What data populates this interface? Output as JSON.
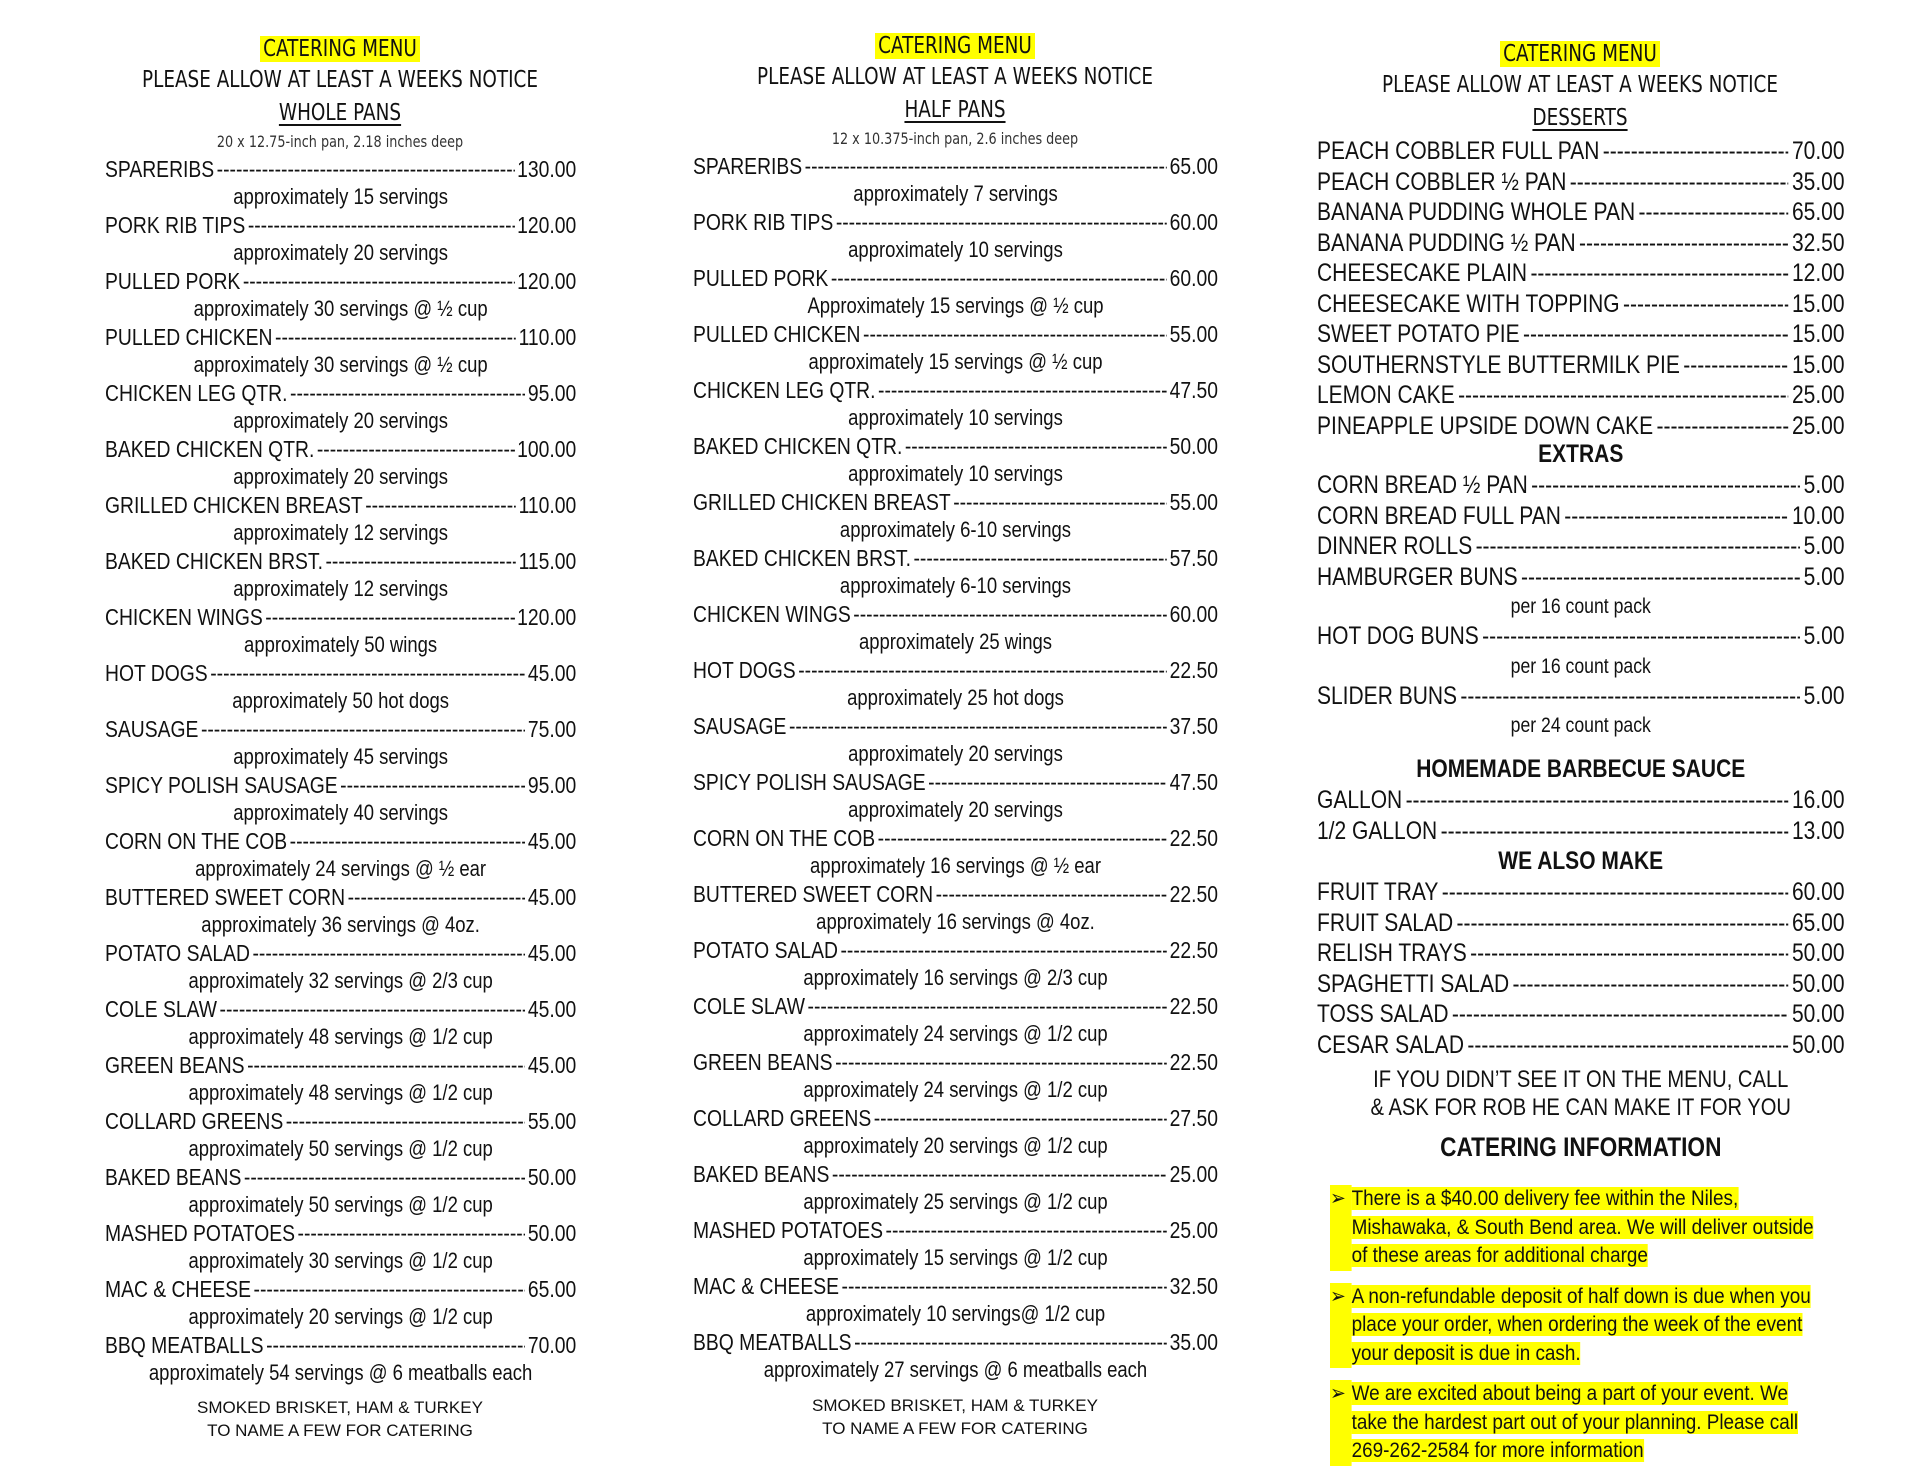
{
  "left": {
    "title": "CATERING MENU",
    "notice": "PLEASE ALLOW AT LEAST A WEEKS NOTICE",
    "section": "WHOLE PANS",
    "spec": "20 x 12.75-inch pan, 2.18 inches deep",
    "items": [
      {
        "name": "SPARERIBS",
        "price": "130.00",
        "note": "approximately 15 servings"
      },
      {
        "name": "PORK RIB TIPS",
        "price": "120.00",
        "note": "approximately 20 servings"
      },
      {
        "name": "PULLED PORK",
        "price": "120.00",
        "note": "approximately 30 servings @ ½ cup"
      },
      {
        "name": "PULLED CHICKEN",
        "price": "110.00",
        "note": "approximately 30 servings @ ½ cup"
      },
      {
        "name": "CHICKEN LEG QTR.",
        "price": "95.00",
        "note": "approximately 20 servings"
      },
      {
        "name": "BAKED CHICKEN QTR.",
        "price": "100.00",
        "note": "approximately 20 servings"
      },
      {
        "name": "GRILLED CHICKEN BREAST",
        "price": "110.00",
        "note": "approximately 12 servings"
      },
      {
        "name": "BAKED CHICKEN BRST.",
        "price": "115.00",
        "note": "approximately 12 servings"
      },
      {
        "name": "CHICKEN WINGS",
        "price": "120.00",
        "note": "approximately 50 wings"
      },
      {
        "name": "HOT DOGS",
        "price": "45.00",
        "note": "approximately 50 hot dogs"
      },
      {
        "name": "SAUSAGE",
        "price": "75.00",
        "note": "approximately 45 servings"
      },
      {
        "name": "SPICY POLISH SAUSAGE",
        "price": "95.00",
        "note": "approximately 40 servings"
      },
      {
        "name": "CORN ON THE COB",
        "price": "45.00",
        "note": "approximately 24 servings @ ½ ear"
      },
      {
        "name": "BUTTERED SWEET CORN",
        "price": "45.00",
        "note": "approximately 36 servings @ 4oz."
      },
      {
        "name": "POTATO SALAD",
        "price": "45.00",
        "note": "approximately 32 servings @ 2/3 cup"
      },
      {
        "name": "COLE SLAW",
        "price": "45.00",
        "note": "approximately 48 servings @ 1/2 cup"
      },
      {
        "name": "GREEN BEANS",
        "price": "45.00",
        "note": "approximately 48 servings @ 1/2 cup"
      },
      {
        "name": "COLLARD GREENS",
        "price": "55.00",
        "note": "approximately 50 servings @ 1/2 cup"
      },
      {
        "name": "BAKED BEANS",
        "price": "50.00",
        "note": "approximately 50 servings @ 1/2 cup"
      },
      {
        "name": "MASHED POTATOES",
        "price": "50.00",
        "note": "approximately 30 servings @ 1/2 cup"
      },
      {
        "name": "MAC & CHEESE",
        "price": "65.00",
        "note": "approximately 20 servings @ 1/2 cup"
      },
      {
        "name": "BBQ MEATBALLS",
        "price": "70.00",
        "note": "approximately 54 servings @ 6 meatballs each"
      }
    ],
    "footer": [
      "SMOKED BRISKET, HAM & TURKEY",
      "TO NAME A FEW FOR CATERING"
    ]
  },
  "middle": {
    "title": "CATERING MENU",
    "notice": "PLEASE ALLOW AT LEAST A WEEKS NOTICE",
    "section": "HALF PANS",
    "spec": "12 x 10.375-inch pan, 2.6 inches deep",
    "items": [
      {
        "name": "SPARERIBS",
        "price": "65.00",
        "note": "approximately 7 servings"
      },
      {
        "name": "PORK RIB TIPS",
        "price": "60.00",
        "note": "approximately 10 servings"
      },
      {
        "name": "PULLED PORK",
        "price": "60.00",
        "note": "Approximately 15 servings @ ½ cup"
      },
      {
        "name": "PULLED CHICKEN",
        "price": "55.00",
        "note": "approximately 15 servings @ ½ cup"
      },
      {
        "name": "CHICKEN LEG QTR.",
        "price": "47.50",
        "note": "approximately 10 servings"
      },
      {
        "name": "BAKED CHICKEN QTR.",
        "price": "50.00",
        "note": "approximately 10 servings"
      },
      {
        "name": "GRILLED CHICKEN BREAST",
        "price": "55.00",
        "note": "approximately 6-10 servings"
      },
      {
        "name": "BAKED CHICKEN BRST.",
        "price": "57.50",
        "note": "approximately 6-10 servings"
      },
      {
        "name": "CHICKEN WINGS",
        "price": "60.00",
        "note": "approximately 25 wings"
      },
      {
        "name": "HOT DOGS",
        "price": "22.50",
        "note": "approximately 25 hot dogs"
      },
      {
        "name": "SAUSAGE",
        "price": "37.50",
        "note": "approximately 20 servings"
      },
      {
        "name": "SPICY POLISH SAUSAGE",
        "price": "47.50",
        "note": "approximately 20 servings"
      },
      {
        "name": "CORN ON THE COB",
        "price": "22.50",
        "note": "approximately 16 servings @ ½ ear"
      },
      {
        "name": "BUTTERED SWEET CORN",
        "price": "22.50",
        "note": "approximately 16 servings @ 4oz."
      },
      {
        "name": "POTATO SALAD",
        "price": "22.50",
        "note": "approximately 16 servings @ 2/3 cup"
      },
      {
        "name": "COLE SLAW",
        "price": "22.50",
        "note": "approximately 24 servings @ 1/2 cup"
      },
      {
        "name": "GREEN BEANS",
        "price": "22.50",
        "note": "approximately 24 servings @ 1/2 cup"
      },
      {
        "name": "COLLARD GREENS",
        "price": "27.50",
        "note": "approximately 20 servings @ 1/2 cup"
      },
      {
        "name": "BAKED BEANS",
        "price": "25.00",
        "note": "approximately 25 servings @ 1/2 cup"
      },
      {
        "name": "MASHED POTATOES",
        "price": "25.00",
        "note": "approximately 15 servings @ 1/2 cup"
      },
      {
        "name": "MAC & CHEESE",
        "price": "32.50",
        "note": "approximately 10 servings@ 1/2 cup"
      },
      {
        "name": "BBQ MEATBALLS",
        "price": "35.00",
        "note": "approximately 27 servings @ 6 meatballs each"
      }
    ],
    "footer": [
      "SMOKED BRISKET, HAM & TURKEY",
      "TO NAME A FEW FOR CATERING"
    ]
  },
  "right": {
    "title": "CATERING MENU",
    "notice": "PLEASE ALLOW AT LEAST A WEEKS NOTICE",
    "section": "DESSERTS",
    "desserts": [
      {
        "name": "PEACH COBBLER FULL PAN",
        "price": "70.00"
      },
      {
        "name": "PEACH COBBLER ½ PAN",
        "price": "35.00"
      },
      {
        "name": "BANANA PUDDING WHOLE PAN",
        "price": "65.00"
      },
      {
        "name": "BANANA PUDDING ½ PAN",
        "price": "32.50"
      },
      {
        "name": "CHEESECAKE PLAIN",
        "price": "12.00"
      },
      {
        "name": "CHEESECAKE WITH TOPPING",
        "price": "15.00"
      },
      {
        "name": "SWEET POTATO PIE",
        "price": "15.00"
      },
      {
        "name": "SOUTHERNSTYLE BUTTERMILK PIE",
        "price": "15.00"
      },
      {
        "name": "LEMON CAKE",
        "price": "25.00"
      },
      {
        "name": "PINEAPPLE UPSIDE DOWN CAKE",
        "price": "25.00"
      }
    ],
    "extras_heading": "EXTRAS",
    "extras": [
      {
        "name": "CORN BREAD ½ PAN",
        "price": "5.00"
      },
      {
        "name": "CORN BREAD FULL PAN",
        "price": "10.00"
      },
      {
        "name": "DINNER ROLLS",
        "price": "5.00"
      },
      {
        "name": "HAMBURGER BUNS",
        "price": "5.00",
        "note": "per 16 count pack"
      },
      {
        "name": "HOT DOG BUNS",
        "price": "5.00",
        "note": "per 16 count pack"
      },
      {
        "name": "SLIDER BUNS",
        "price": "5.00",
        "note": "per 24 count pack"
      }
    ],
    "sauce_heading": "HOMEMADE BARBECUE SAUCE",
    "sauce": [
      {
        "name": "GALLON",
        "price": "16.00"
      },
      {
        "name": "1/2 GALLON",
        "price": "13.00"
      }
    ],
    "also_heading": "WE ALSO MAKE",
    "also": [
      {
        "name": "FRUIT TRAY",
        "price": "60.00"
      },
      {
        "name": "FRUIT SALAD",
        "price": "65.00"
      },
      {
        "name": "RELISH TRAYS",
        "price": "50.00"
      },
      {
        "name": "SPAGHETTI SALAD",
        "price": "50.00"
      },
      {
        "name": "TOSS SALAD",
        "price": "50.00"
      },
      {
        "name": "CESAR SALAD",
        "price": "50.00"
      }
    ],
    "callout": [
      "IF YOU DIDN’T SEE IT ON THE MENU, CALL",
      "& ASK FOR ROB HE CAN MAKE IT FOR YOU"
    ],
    "info_heading": "CATERING INFORMATION",
    "info": [
      "There is a $40.00 delivery fee within the Niles, Mishawaka, & South Bend area. We will deliver outside of these areas for additional charge",
      "A non-refundable deposit of half down is due when you place your order, when ordering the week of the event your deposit is due in cash.",
      "We are excited about being a part of your event. We take the hardest part out of your planning. Please call 269-262-2584 for more information"
    ],
    "bullet_icon": "arrow-bullet-icon"
  },
  "colors": {
    "highlight": "#ffff00",
    "text": "#111111"
  }
}
